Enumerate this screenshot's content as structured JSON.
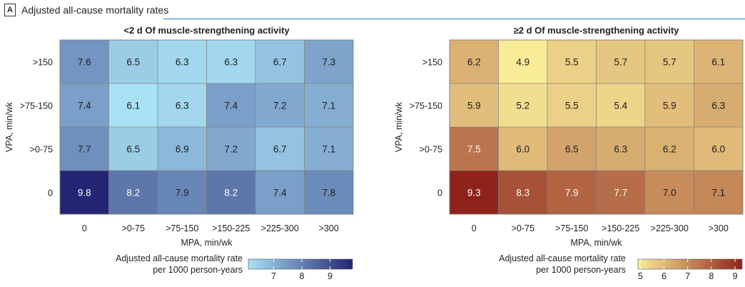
{
  "header": {
    "panel_letter": "A",
    "panel_title": "Adjusted all-cause mortality rates"
  },
  "chart_data": [
    {
      "type": "heatmap",
      "title": "<2 d Of muscle-strengthening activity",
      "xlabel": "MPA, min/wk",
      "ylabel": "VPA, min/wk",
      "x_categories": [
        "0",
        ">0-75",
        ">75-150",
        ">150-225",
        ">225-300",
        ">300"
      ],
      "y_categories": [
        ">150",
        ">75-150",
        ">0-75",
        "0"
      ],
      "values": [
        [
          7.6,
          6.5,
          6.3,
          6.3,
          6.7,
          7.3
        ],
        [
          7.4,
          6.1,
          6.3,
          7.4,
          7.2,
          7.1
        ],
        [
          7.7,
          6.5,
          6.9,
          7.2,
          6.7,
          7.1
        ],
        [
          9.8,
          8.2,
          7.9,
          8.2,
          7.4,
          7.8
        ]
      ],
      "colorbar": {
        "label_line1": "Adjusted all-cause mortality rate",
        "label_line2": "per 1000 person-years",
        "min": 6.1,
        "max": 9.8,
        "ticks": [
          "7",
          "8",
          "9"
        ],
        "tick_values": [
          7,
          8,
          9
        ],
        "color_low": "#a9e1f5",
        "color_high": "#232574"
      }
    },
    {
      "type": "heatmap",
      "title": "≥2 d Of muscle-strengthening activity",
      "xlabel": "MPA, min/wk",
      "ylabel": "VPA, min/wk",
      "x_categories": [
        "0",
        ">0-75",
        ">75-150",
        ">150-225",
        ">225-300",
        ">300"
      ],
      "y_categories": [
        ">150",
        ">75-150",
        ">0-75",
        "0"
      ],
      "values": [
        [
          6.2,
          4.9,
          5.5,
          5.7,
          5.7,
          6.1
        ],
        [
          5.9,
          5.2,
          5.5,
          5.4,
          5.9,
          6.3
        ],
        [
          7.5,
          6.0,
          6.5,
          6.3,
          6.2,
          6.0
        ],
        [
          9.3,
          8.3,
          7.9,
          7.7,
          7.0,
          7.1
        ]
      ],
      "colorbar": {
        "label_line1": "Adjusted all-cause mortality rate",
        "label_line2": "per 1000 person-years",
        "min": 4.9,
        "max": 9.3,
        "ticks": [
          "5",
          "6",
          "7",
          "8",
          "9"
        ],
        "tick_values": [
          5,
          6,
          7,
          8,
          9
        ],
        "color_low": "#f9ec98",
        "color_high": "#8f231a"
      }
    }
  ]
}
